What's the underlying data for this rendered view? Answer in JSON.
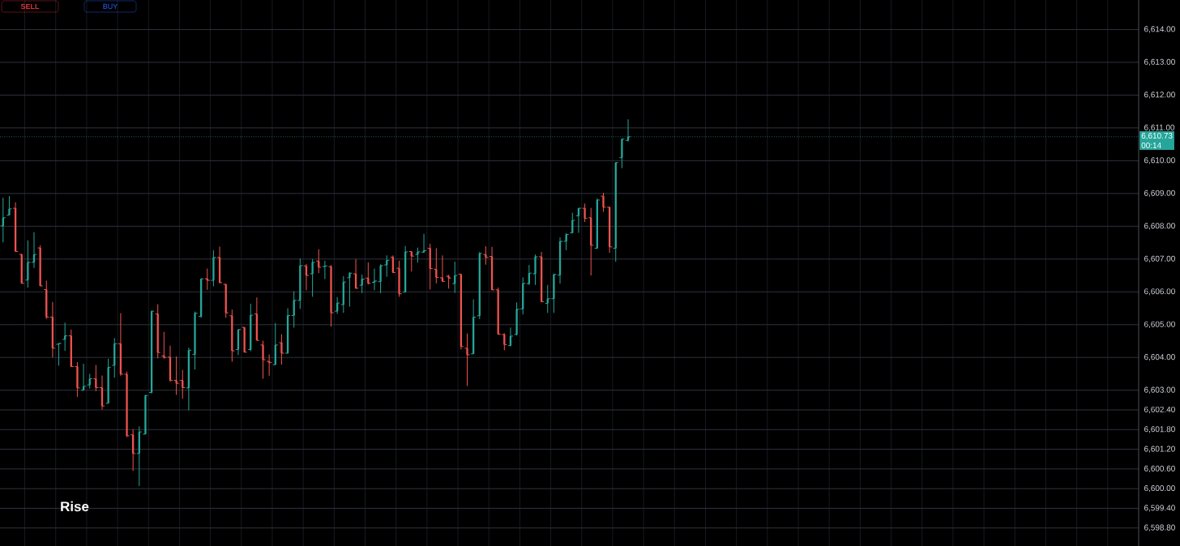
{
  "chart_data": {
    "type": "candlestick",
    "categories": [
      null,
      null,
      null,
      null,
      null,
      null,
      null,
      null,
      null,
      null,
      null,
      null,
      null,
      null,
      null,
      null,
      null,
      null,
      null,
      null,
      null,
      null,
      null,
      null,
      null,
      null,
      null,
      null,
      null,
      null,
      null,
      null,
      null,
      null,
      null,
      null,
      null,
      null,
      null,
      null,
      null,
      null,
      null,
      null,
      null,
      null,
      null,
      null,
      null,
      null,
      null,
      null,
      null,
      null,
      null,
      null,
      null,
      null,
      null,
      null,
      null,
      null,
      null,
      null,
      null,
      null,
      null,
      null,
      null,
      null,
      null,
      null,
      null,
      null,
      null,
      null,
      null,
      null,
      null,
      null,
      null,
      null,
      null,
      null,
      null,
      null,
      null,
      null,
      null,
      null,
      null,
      null,
      null,
      null,
      null,
      null,
      null,
      null,
      null,
      null,
      null,
      null,
      null,
      null,
      null,
      null,
      null,
      null,
      null,
      null,
      null,
      null,
      null,
      null,
      null,
      null,
      null,
      null,
      null,
      null,
      null,
      null,
      null,
      null,
      null,
      null,
      null,
      null,
      null,
      null,
      null,
      null,
      null,
      null,
      null,
      null,
      null,
      null,
      null,
      null,
      null,
      null,
      null,
      null,
      null,
      null,
      null,
      null,
      null,
      null,
      null,
      null,
      null,
      null,
      null,
      null,
      null,
      null,
      null,
      null,
      null,
      null,
      null,
      null,
      null,
      null,
      null,
      null,
      null,
      null,
      null,
      null,
      null,
      null,
      null,
      null,
      null,
      null,
      null,
      null,
      null,
      null,
      null,
      null
    ],
    "ohlc": [
      [
        6608.01,
        6608.87,
        6607.51,
        6608.26
      ],
      [
        6608.34,
        6608.92,
        6608.34,
        6608.53
      ],
      [
        6608.55,
        6608.73,
        6607.23,
        6607.23
      ],
      [
        6607.14,
        6607.16,
        6606.26,
        6606.26
      ],
      [
        6606.36,
        6607.57,
        6606.13,
        6606.9
      ],
      [
        6606.9,
        6607.82,
        6606.73,
        6607.14
      ],
      [
        6607.34,
        6607.42,
        6606.18,
        6606.18
      ],
      [
        6606.07,
        6606.34,
        6605.17,
        6605.23
      ],
      [
        6605.23,
        6605.69,
        6604.0,
        6604.28
      ],
      [
        6604.4,
        6604.43,
        6603.75,
        6604.43
      ],
      [
        6604.55,
        6605.06,
        6604.2,
        6604.66
      ],
      [
        6604.66,
        6604.85,
        6603.72,
        6603.72
      ],
      [
        6603.72,
        6603.86,
        6602.8,
        6603.07
      ],
      [
        6603.0,
        6603.81,
        6603.0,
        6603.12
      ],
      [
        6603.16,
        6603.5,
        6603.05,
        6603.35
      ],
      [
        6603.35,
        6603.77,
        6602.97,
        6603.08
      ],
      [
        6603.08,
        6603.45,
        6602.41,
        6602.52
      ],
      [
        6602.6,
        6603.96,
        6602.6,
        6603.7
      ],
      [
        6603.76,
        6604.59,
        6603.38,
        6604.42
      ],
      [
        6604.42,
        6605.35,
        6603.44,
        6603.49
      ],
      [
        6603.49,
        6603.57,
        6601.57,
        6601.61
      ],
      [
        6601.64,
        6601.81,
        6600.54,
        6601.07
      ],
      [
        6601.07,
        6601.9,
        6600.08,
        6601.73
      ],
      [
        6601.66,
        6602.86,
        6601.66,
        6602.84
      ],
      [
        6602.93,
        6605.43,
        6602.9,
        6605.41
      ],
      [
        6605.33,
        6605.62,
        6603.97,
        6604.15
      ],
      [
        6604.05,
        6604.78,
        6603.96,
        6604.0
      ],
      [
        6604.01,
        6604.36,
        6603.26,
        6603.3
      ],
      [
        6603.3,
        6604.03,
        6602.86,
        6603.21
      ],
      [
        6603.3,
        6603.62,
        6602.74,
        6603.08
      ],
      [
        6603.07,
        6604.3,
        6602.39,
        6604.22
      ],
      [
        6604.09,
        6605.4,
        6603.63,
        6605.35
      ],
      [
        6605.25,
        6606.4,
        6605.21,
        6606.4
      ],
      [
        6606.4,
        6606.71,
        6606.06,
        6606.35
      ],
      [
        6606.35,
        6607.27,
        6606.17,
        6607.05
      ],
      [
        6607.05,
        6607.38,
        6606.26,
        6606.28
      ],
      [
        6606.23,
        6606.25,
        6605.21,
        6605.36
      ],
      [
        6605.27,
        6605.46,
        6603.87,
        6604.2
      ],
      [
        6604.24,
        6604.85,
        6604.07,
        6604.85
      ],
      [
        6604.92,
        6604.92,
        6604.15,
        6604.16
      ],
      [
        6604.24,
        6605.64,
        6604.19,
        6605.29
      ],
      [
        6605.33,
        6605.83,
        6604.52,
        6604.52
      ],
      [
        6604.38,
        6604.51,
        6603.35,
        6603.93
      ],
      [
        6603.88,
        6604.09,
        6603.44,
        6603.84
      ],
      [
        6603.78,
        6605.05,
        6603.77,
        6604.38
      ],
      [
        6604.45,
        6604.71,
        6603.78,
        6604.13
      ],
      [
        6604.13,
        6605.5,
        6604.12,
        6605.28
      ],
      [
        6605.28,
        6606.02,
        6604.91,
        6605.74
      ],
      [
        6605.74,
        6607.02,
        6605.48,
        6606.8
      ],
      [
        6606.79,
        6606.85,
        6606.05,
        6606.5
      ],
      [
        6606.55,
        6607.0,
        6605.85,
        6606.9
      ],
      [
        6606.94,
        6607.3,
        6606.57,
        6606.75
      ],
      [
        6606.77,
        6606.95,
        6606.39,
        6606.79
      ],
      [
        6606.77,
        6606.82,
        6604.94,
        6605.36
      ],
      [
        6605.41,
        6605.84,
        6605.33,
        6605.66
      ],
      [
        6605.61,
        6606.48,
        6605.36,
        6606.3
      ],
      [
        6606.43,
        6606.6,
        6605.55,
        6606.57
      ],
      [
        6606.55,
        6607.0,
        6606.09,
        6606.11
      ],
      [
        6606.2,
        6606.53,
        6605.96,
        6606.39
      ],
      [
        6606.42,
        6606.9,
        6606.22,
        6606.26
      ],
      [
        6606.29,
        6606.71,
        6606.05,
        6606.33
      ],
      [
        6606.31,
        6606.84,
        6605.96,
        6606.8
      ],
      [
        6606.82,
        6607.11,
        6606.46,
        6606.96
      ],
      [
        6607.06,
        6607.11,
        6606.57,
        6606.59
      ],
      [
        6606.72,
        6606.95,
        6605.85,
        6605.94
      ],
      [
        6605.99,
        6607.4,
        6605.99,
        6607.22
      ],
      [
        6607.23,
        6607.23,
        6606.62,
        6607.09
      ],
      [
        6607.14,
        6607.35,
        6606.89,
        6607.22
      ],
      [
        6607.21,
        6607.77,
        6607.19,
        6607.26
      ],
      [
        6607.33,
        6607.47,
        6606.07,
        6606.71
      ],
      [
        6606.69,
        6607.33,
        6606.26,
        6606.44
      ],
      [
        6606.43,
        6607.11,
        6606.3,
        6606.32
      ],
      [
        6606.48,
        6606.52,
        6606.1,
        6606.42
      ],
      [
        6606.25,
        6606.92,
        6605.97,
        6606.5
      ],
      [
        6606.54,
        6606.54,
        6604.24,
        6604.33
      ],
      [
        6604.28,
        6604.73,
        6603.13,
        6604.08
      ],
      [
        6604.11,
        6605.77,
        6604.1,
        6605.23
      ],
      [
        6605.27,
        6607.22,
        6605.17,
        6607.17
      ],
      [
        6607.14,
        6607.39,
        6606.83,
        6607.05
      ],
      [
        6607.08,
        6607.37,
        6606.05,
        6606.06
      ],
      [
        6606.06,
        6606.13,
        6604.69,
        6604.71
      ],
      [
        6604.7,
        6604.74,
        6604.22,
        6604.39
      ],
      [
        6604.36,
        6604.91,
        6604.34,
        6604.65
      ],
      [
        6604.7,
        6605.68,
        6604.67,
        6605.47
      ],
      [
        6605.48,
        6606.44,
        6605.31,
        6606.26
      ],
      [
        6606.25,
        6606.82,
        6606.21,
        6606.57
      ],
      [
        6606.55,
        6607.14,
        6606.21,
        6607.07
      ],
      [
        6607.07,
        6607.22,
        6605.68,
        6605.7
      ],
      [
        6605.65,
        6606.21,
        6605.36,
        6605.79
      ],
      [
        6605.79,
        6606.56,
        6605.36,
        6606.53
      ],
      [
        6606.51,
        6607.66,
        6606.25,
        6607.54
      ],
      [
        6607.54,
        6607.79,
        6607.27,
        6607.75
      ],
      [
        6607.8,
        6608.41,
        6607.79,
        6608.18
      ],
      [
        6608.32,
        6608.56,
        6607.8,
        6608.55
      ],
      [
        6608.55,
        6608.69,
        6608.13,
        6608.24
      ],
      [
        6608.26,
        6608.56,
        6606.5,
        6607.42
      ],
      [
        6607.33,
        6608.85,
        6607.31,
        6608.8
      ],
      [
        6608.92,
        6609.02,
        6608.44,
        6608.58
      ],
      [
        6608.58,
        6608.6,
        6607.19,
        6607.37
      ],
      [
        6607.33,
        6609.95,
        6606.92,
        6609.94
      ],
      [
        6610.09,
        6610.67,
        6609.77,
        6610.66
      ],
      [
        6610.62,
        6611.26,
        6610.58,
        6610.73
      ],
      null,
      null,
      null,
      null,
      null,
      null,
      null,
      null,
      null,
      null,
      null,
      null,
      null,
      null,
      null,
      null,
      null,
      null,
      null,
      null,
      null,
      null,
      null,
      null,
      null,
      null,
      null,
      null,
      null,
      null,
      null,
      null,
      null,
      null,
      null,
      null,
      null,
      null,
      null,
      null,
      null,
      null,
      null,
      null,
      null,
      null,
      null,
      null,
      null,
      null,
      null,
      null,
      null,
      null,
      null,
      null,
      null,
      null,
      null,
      null,
      null,
      null,
      null,
      null,
      null,
      null,
      null,
      null,
      null,
      null,
      null,
      null,
      null,
      null,
      null,
      null,
      null,
      null,
      null,
      null,
      null,
      null
    ],
    "colors": [
      "#26a69a",
      "#26a69a",
      "#ef5350",
      "#ef5350",
      "#26a69a",
      "#26a69a",
      "#ef5350",
      "#ef5350",
      "#ef5350",
      "#26a69a",
      "#26a69a",
      "#ef5350",
      "#ef5350",
      "#26a69a",
      "#26a69a",
      "#ef5350",
      "#ef5350",
      "#26a69a",
      "#26a69a",
      "#ef5350",
      "#ef5350",
      "#ef5350",
      "#26a69a",
      "#26a69a",
      "#26a69a",
      "#ef5350",
      "#ef5350",
      "#ef5350",
      "#ef5350",
      "#ef5350",
      "#26a69a",
      "#26a69a",
      "#26a69a",
      "#ef5350",
      "#26a69a",
      "#ef5350",
      "#ef5350",
      "#ef5350",
      "#26a69a",
      "#ef5350",
      "#26a69a",
      "#ef5350",
      "#ef5350",
      "#ef5350",
      "#26a69a",
      "#ef5350",
      "#26a69a",
      "#26a69a",
      "#26a69a",
      "#ef5350",
      "#26a69a",
      "#ef5350",
      "#26a69a",
      "#ef5350",
      "#26a69a",
      "#26a69a",
      "#26a69a",
      "#ef5350",
      "#26a69a",
      "#ef5350",
      "#26a69a",
      "#26a69a",
      "#26a69a",
      "#ef5350",
      "#ef5350",
      "#26a69a",
      "#ef5350",
      "#26a69a",
      "#26a69a",
      "#ef5350",
      "#ef5350",
      "#ef5350",
      "#ef5350",
      "#26a69a",
      "#ef5350",
      "#ef5350",
      "#26a69a",
      "#26a69a",
      "#ef5350",
      "#ef5350",
      "#ef5350",
      "#ef5350",
      "#26a69a",
      "#26a69a",
      "#26a69a",
      "#26a69a",
      "#26a69a",
      "#ef5350",
      "#26a69a",
      "#26a69a",
      "#26a69a",
      "#26a69a",
      "#26a69a",
      "#26a69a",
      "#ef5350",
      "#ef5350",
      "#26a69a",
      "#ef5350",
      "#ef5350",
      "#26a69a",
      "#26a69a",
      "#26a69a",
      null,
      null,
      null,
      null,
      null,
      null,
      null,
      null,
      null,
      null,
      null,
      null,
      null,
      null,
      null,
      null,
      null,
      null,
      null,
      null,
      null,
      null,
      null,
      null,
      null,
      null,
      null,
      null,
      null,
      null,
      null,
      null,
      null,
      null,
      null,
      null,
      null,
      null,
      null,
      null,
      null,
      null,
      null,
      null,
      null,
      null,
      null,
      null,
      null,
      null,
      null,
      null,
      null,
      null,
      null,
      null,
      null,
      null,
      null,
      null,
      null,
      null,
      null,
      null,
      null,
      null,
      null,
      null,
      null,
      null,
      null,
      null,
      null,
      null,
      null,
      null,
      null,
      null,
      null,
      null,
      null,
      null
    ],
    "ylim": [
      6598.25,
      6614.9
    ],
    "yticks": [
      {
        "value": 6614,
        "label": "6,614.00"
      },
      {
        "value": 6613,
        "label": "6,613.00"
      },
      {
        "value": 6612,
        "label": "6,612.00"
      },
      {
        "value": 6611,
        "label": "6,611.00"
      },
      {
        "value": 6610,
        "label": "6,610.00"
      },
      {
        "value": 6609,
        "label": "6,609.00"
      },
      {
        "value": 6608,
        "label": "6,608.00"
      },
      {
        "value": 6607,
        "label": "6,607.00"
      },
      {
        "value": 6606,
        "label": "6,606.00"
      },
      {
        "value": 6605,
        "label": "6,605.00"
      },
      {
        "value": 6604,
        "label": "6,604.00"
      },
      {
        "value": 6603,
        "label": "6,603.00"
      },
      {
        "value": 6602.4,
        "label": "6,602.40"
      },
      {
        "value": 6601.8,
        "label": "6,601.80"
      },
      {
        "value": 6601.2,
        "label": "6,601.20"
      },
      {
        "value": 6600.6,
        "label": "6,600.60"
      },
      {
        "value": 6600,
        "label": "6,600.00"
      },
      {
        "value": 6599.4,
        "label": "6,599.40"
      },
      {
        "value": 6598.8,
        "label": "6,598.80"
      }
    ],
    "tick_labels": "y",
    "grid": true,
    "ref_lines": [
      {
        "axis": "y",
        "value": 6610.73,
        "label": "6,610.73",
        "color": "#26a69a",
        "line_style": "dotted"
      }
    ],
    "annotations": [
      "SELL",
      "BUY",
      "Rise",
      "00:14"
    ]
  }
}
